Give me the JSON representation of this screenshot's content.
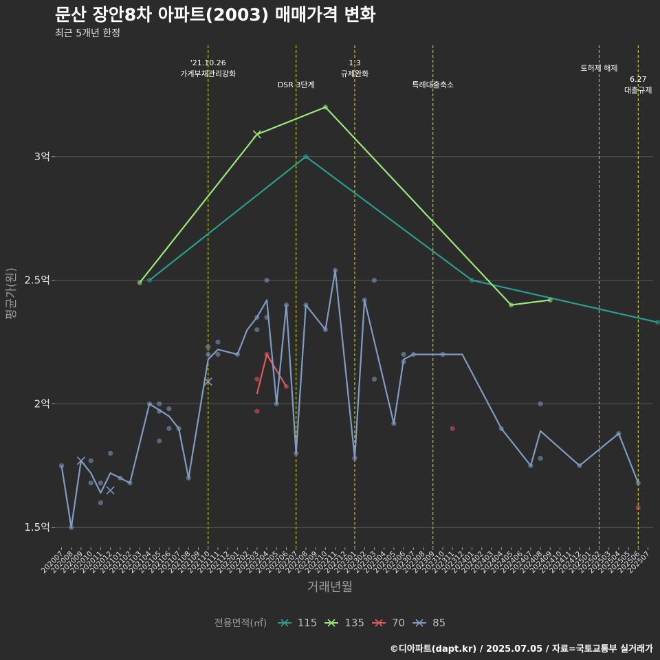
{
  "title": "문산 장안8차 아파트(2003) 매매가격 변화",
  "subtitle": "최근 5개년 한정",
  "caption": "©디아파트(dapt.kr) / 2025.07.05 / 자료=국토교통부 실거래가",
  "chart_data": {
    "type": "line",
    "xlabel": "거래년월",
    "ylabel": "평균가(원)",
    "ylim": [
      1.42,
      3.45
    ],
    "yticks": [
      {
        "v": 1.5,
        "label": "1.5억"
      },
      {
        "v": 2.0,
        "label": "2억"
      },
      {
        "v": 2.5,
        "label": "2.5억"
      },
      {
        "v": 3.0,
        "label": "3억"
      }
    ],
    "grid": true,
    "legend_position": "bottom",
    "legend_title": "전용면적(㎡)",
    "categories": [
      "202007",
      "202008",
      "202009",
      "202010",
      "202011",
      "202012",
      "202101",
      "202102",
      "202103",
      "202104",
      "202105",
      "202106",
      "202107",
      "202108",
      "202109",
      "202110",
      "202111",
      "202112",
      "202201",
      "202202",
      "202203",
      "202204",
      "202205",
      "202206",
      "202207",
      "202208",
      "202209",
      "202210",
      "202211",
      "202212",
      "202301",
      "202302",
      "202303",
      "202304",
      "202305",
      "202306",
      "202307",
      "202308",
      "202309",
      "202310",
      "202311",
      "202312",
      "202401",
      "202402",
      "202403",
      "202404",
      "202405",
      "202406",
      "202407",
      "202408",
      "202409",
      "202410",
      "202411",
      "202412",
      "202501",
      "202502",
      "202503",
      "202504",
      "202505",
      "202506",
      "202507"
    ],
    "series": [
      {
        "name": "115",
        "color": "#2a9d8f",
        "line": [
          [
            9,
            2.5
          ],
          [
            25,
            3.0
          ],
          [
            42,
            2.5
          ],
          [
            61,
            2.33
          ]
        ],
        "points": [
          [
            9,
            2.5
          ],
          [
            25,
            3.0
          ],
          [
            42,
            2.5
          ],
          [
            61,
            2.33
          ]
        ],
        "cross": []
      },
      {
        "name": "135",
        "color": "#9be87a",
        "line": [
          [
            8,
            2.49
          ],
          [
            20,
            3.09
          ],
          [
            27,
            3.2
          ],
          [
            46,
            2.4
          ],
          [
            50,
            2.42
          ]
        ],
        "points": [
          [
            8,
            2.49
          ],
          [
            27,
            3.2
          ],
          [
            46,
            2.4
          ],
          [
            50,
            2.42
          ]
        ],
        "cross": [
          [
            20,
            3.09
          ]
        ]
      },
      {
        "name": "70",
        "color": "#e05a5a",
        "line": [
          [
            20,
            2.04
          ],
          [
            21,
            2.2
          ],
          [
            23,
            2.07
          ]
        ],
        "points": [
          [
            20,
            2.1
          ],
          [
            20,
            1.97
          ],
          [
            21,
            2.2
          ],
          [
            23,
            2.07
          ],
          [
            40,
            1.9
          ],
          [
            59,
            1.58
          ]
        ],
        "cross": []
      },
      {
        "name": "85",
        "color": "#7f9cc4",
        "line": [
          [
            0,
            1.75
          ],
          [
            1,
            1.5
          ],
          [
            2,
            1.77
          ],
          [
            3,
            1.72
          ],
          [
            4,
            1.64
          ],
          [
            5,
            1.72
          ],
          [
            6,
            1.7
          ],
          [
            7,
            1.68
          ],
          [
            9,
            2.0
          ],
          [
            11,
            1.95
          ],
          [
            12,
            1.9
          ],
          [
            13,
            1.7
          ],
          [
            15,
            2.18
          ],
          [
            16,
            2.22
          ],
          [
            18,
            2.2
          ],
          [
            19,
            2.3
          ],
          [
            20,
            2.35
          ],
          [
            21,
            2.42
          ],
          [
            22,
            2.0
          ],
          [
            23,
            2.4
          ],
          [
            24,
            1.8
          ],
          [
            25,
            2.4
          ],
          [
            27,
            2.3
          ],
          [
            28,
            2.54
          ],
          [
            30,
            1.78
          ],
          [
            31,
            2.42
          ],
          [
            34,
            1.92
          ],
          [
            35,
            2.18
          ],
          [
            36,
            2.2
          ],
          [
            39,
            2.2
          ],
          [
            41,
            2.2
          ],
          [
            45,
            1.9
          ],
          [
            48,
            1.75
          ],
          [
            49,
            1.89
          ],
          [
            53,
            1.75
          ],
          [
            57,
            1.88
          ],
          [
            59,
            1.68
          ]
        ],
        "points": [
          [
            0,
            1.75
          ],
          [
            1,
            1.5
          ],
          [
            3,
            1.68
          ],
          [
            3,
            1.77
          ],
          [
            4,
            1.68
          ],
          [
            4,
            1.6
          ],
          [
            5,
            1.8
          ],
          [
            6,
            1.7
          ],
          [
            7,
            1.68
          ],
          [
            9,
            2.0
          ],
          [
            10,
            1.85
          ],
          [
            10,
            1.97
          ],
          [
            10,
            2.0
          ],
          [
            11,
            1.98
          ],
          [
            11,
            1.9
          ],
          [
            12,
            1.9
          ],
          [
            13,
            1.7
          ],
          [
            15,
            2.23
          ],
          [
            15,
            2.2
          ],
          [
            16,
            2.25
          ],
          [
            16,
            2.2
          ],
          [
            18,
            2.2
          ],
          [
            20,
            2.35
          ],
          [
            20,
            2.3
          ],
          [
            21,
            2.5
          ],
          [
            21,
            2.35
          ],
          [
            22,
            2.0
          ],
          [
            23,
            2.4
          ],
          [
            24,
            1.8
          ],
          [
            25,
            2.4
          ],
          [
            27,
            2.3
          ],
          [
            28,
            2.54
          ],
          [
            30,
            1.78
          ],
          [
            31,
            2.42
          ],
          [
            32,
            2.1
          ],
          [
            32,
            2.5
          ],
          [
            34,
            1.92
          ],
          [
            35,
            2.2
          ],
          [
            35,
            2.17
          ],
          [
            36,
            2.2
          ],
          [
            39,
            2.2
          ],
          [
            45,
            1.9
          ],
          [
            48,
            1.75
          ],
          [
            49,
            2.0
          ],
          [
            49,
            1.78
          ],
          [
            53,
            1.75
          ],
          [
            57,
            1.88
          ],
          [
            59,
            1.68
          ]
        ],
        "cross": [
          [
            2,
            1.77
          ],
          [
            5,
            1.65
          ],
          [
            15,
            2.09
          ]
        ]
      }
    ],
    "events": [
      {
        "x": 15,
        "lines": [
          "'21.10.26",
          "가계부채관리강화"
        ],
        "level": 0
      },
      {
        "x": 24,
        "lines": [
          "DSR 3단계"
        ],
        "level": 2
      },
      {
        "x": 30,
        "lines": [
          "1.3",
          "규제완화"
        ],
        "level": 0
      },
      {
        "x": 38,
        "lines": [
          "특례대출축소"
        ],
        "level": 2
      },
      {
        "x": 55,
        "lines": [
          "토허제 해제"
        ],
        "level": 1
      },
      {
        "x": 59,
        "lines": [
          "6.27",
          "대출규제"
        ],
        "level": 3
      }
    ]
  }
}
